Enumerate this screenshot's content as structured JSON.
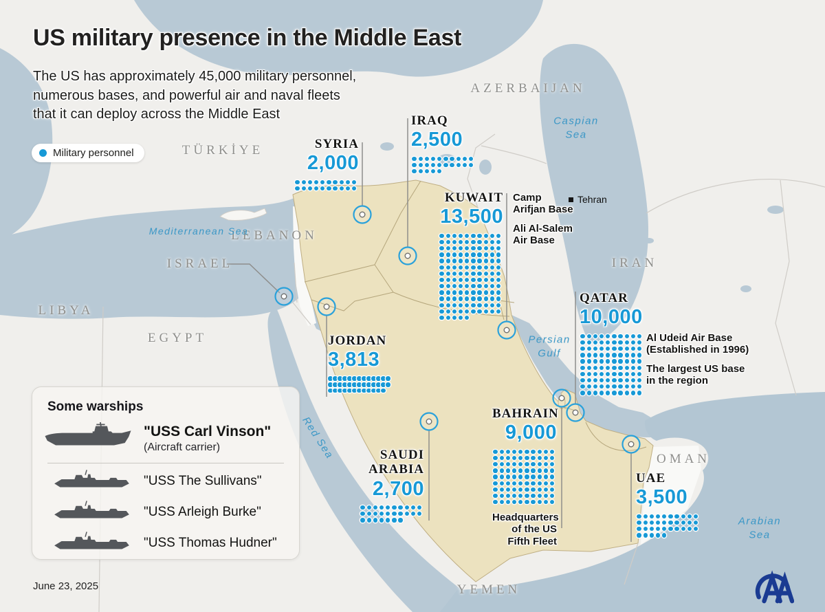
{
  "meta": {
    "date": "June 23, 2025",
    "agency_logo": "AA"
  },
  "colors": {
    "accent_blue": "#1799d6",
    "highlight_land": "#ece2bf",
    "sea": "#b8c9d5",
    "logo_navy": "#1a3b92"
  },
  "header": {
    "title": "US military presence in the Middle East",
    "subtitle": "The US has approximately 45,000 military personnel,\nnumerous bases, and powerful air and naval fleets\nthat it can deploy across the Middle East"
  },
  "legend": {
    "label": "Military personnel"
  },
  "stats": [
    {
      "id": "syria",
      "name": "SYRIA",
      "value": "2,000",
      "personnel": 2000,
      "dots": 20,
      "per_row": 10
    },
    {
      "id": "iraq",
      "name": "IRAQ",
      "value": "2,500",
      "personnel": 2500,
      "dots": 25,
      "per_row": 10
    },
    {
      "id": "kuwait",
      "name": "KUWAIT",
      "value": "13,500",
      "personnel": 13500,
      "dots": 135,
      "per_row": 10,
      "notes": [
        "Camp\nArifjan Base",
        "Ali Al-Salem\nAir Base"
      ]
    },
    {
      "id": "qatar",
      "name": "QATAR",
      "value": "10,000",
      "personnel": 10000,
      "dots": 100,
      "per_row": 10,
      "notes": [
        "Al Udeid Air Base\n(Established in 1996)",
        "The largest US base\nin the region"
      ]
    },
    {
      "id": "bahrain",
      "name": "BAHRAIN",
      "value": "9,000",
      "personnel": 9000,
      "dots": 90,
      "per_row": 10,
      "notes": [
        "Headquarters\nof the US\nFifth Fleet"
      ]
    },
    {
      "id": "jordan",
      "name": "JORDAN",
      "value": "3,813",
      "personnel": 3813,
      "dots": 38,
      "per_row": 13
    },
    {
      "id": "saudi",
      "name": "SAUDI\nARABIA",
      "value": "2,700",
      "personnel": 2700,
      "dots": 27,
      "per_row": 10
    },
    {
      "id": "uae",
      "name": "UAE",
      "value": "3,500",
      "personnel": 3500,
      "dots": 35,
      "per_row": 10
    }
  ],
  "map_labels": {
    "countries": [
      "TÜRKİYE",
      "AZERBAIJAN",
      "IRAN",
      "LEBANON",
      "ISRAEL",
      "LIBYA",
      "EGYPT",
      "OMAN",
      "YEMEN"
    ],
    "seas": [
      "Caspian\nSea",
      "Mediterranean Sea",
      "Persian\nGulf",
      "Red Sea",
      "Arabian\nSea"
    ],
    "city": "Tehran"
  },
  "warships": {
    "title": "Some warships",
    "items": [
      {
        "name": "\"USS Carl Vinson\"",
        "type": "(Aircraft carrier)"
      },
      {
        "name": "\"USS The Sullivans\""
      },
      {
        "name": "\"USS Arleigh Burke\""
      },
      {
        "name": "\"USS Thomas Hudner\""
      }
    ]
  }
}
